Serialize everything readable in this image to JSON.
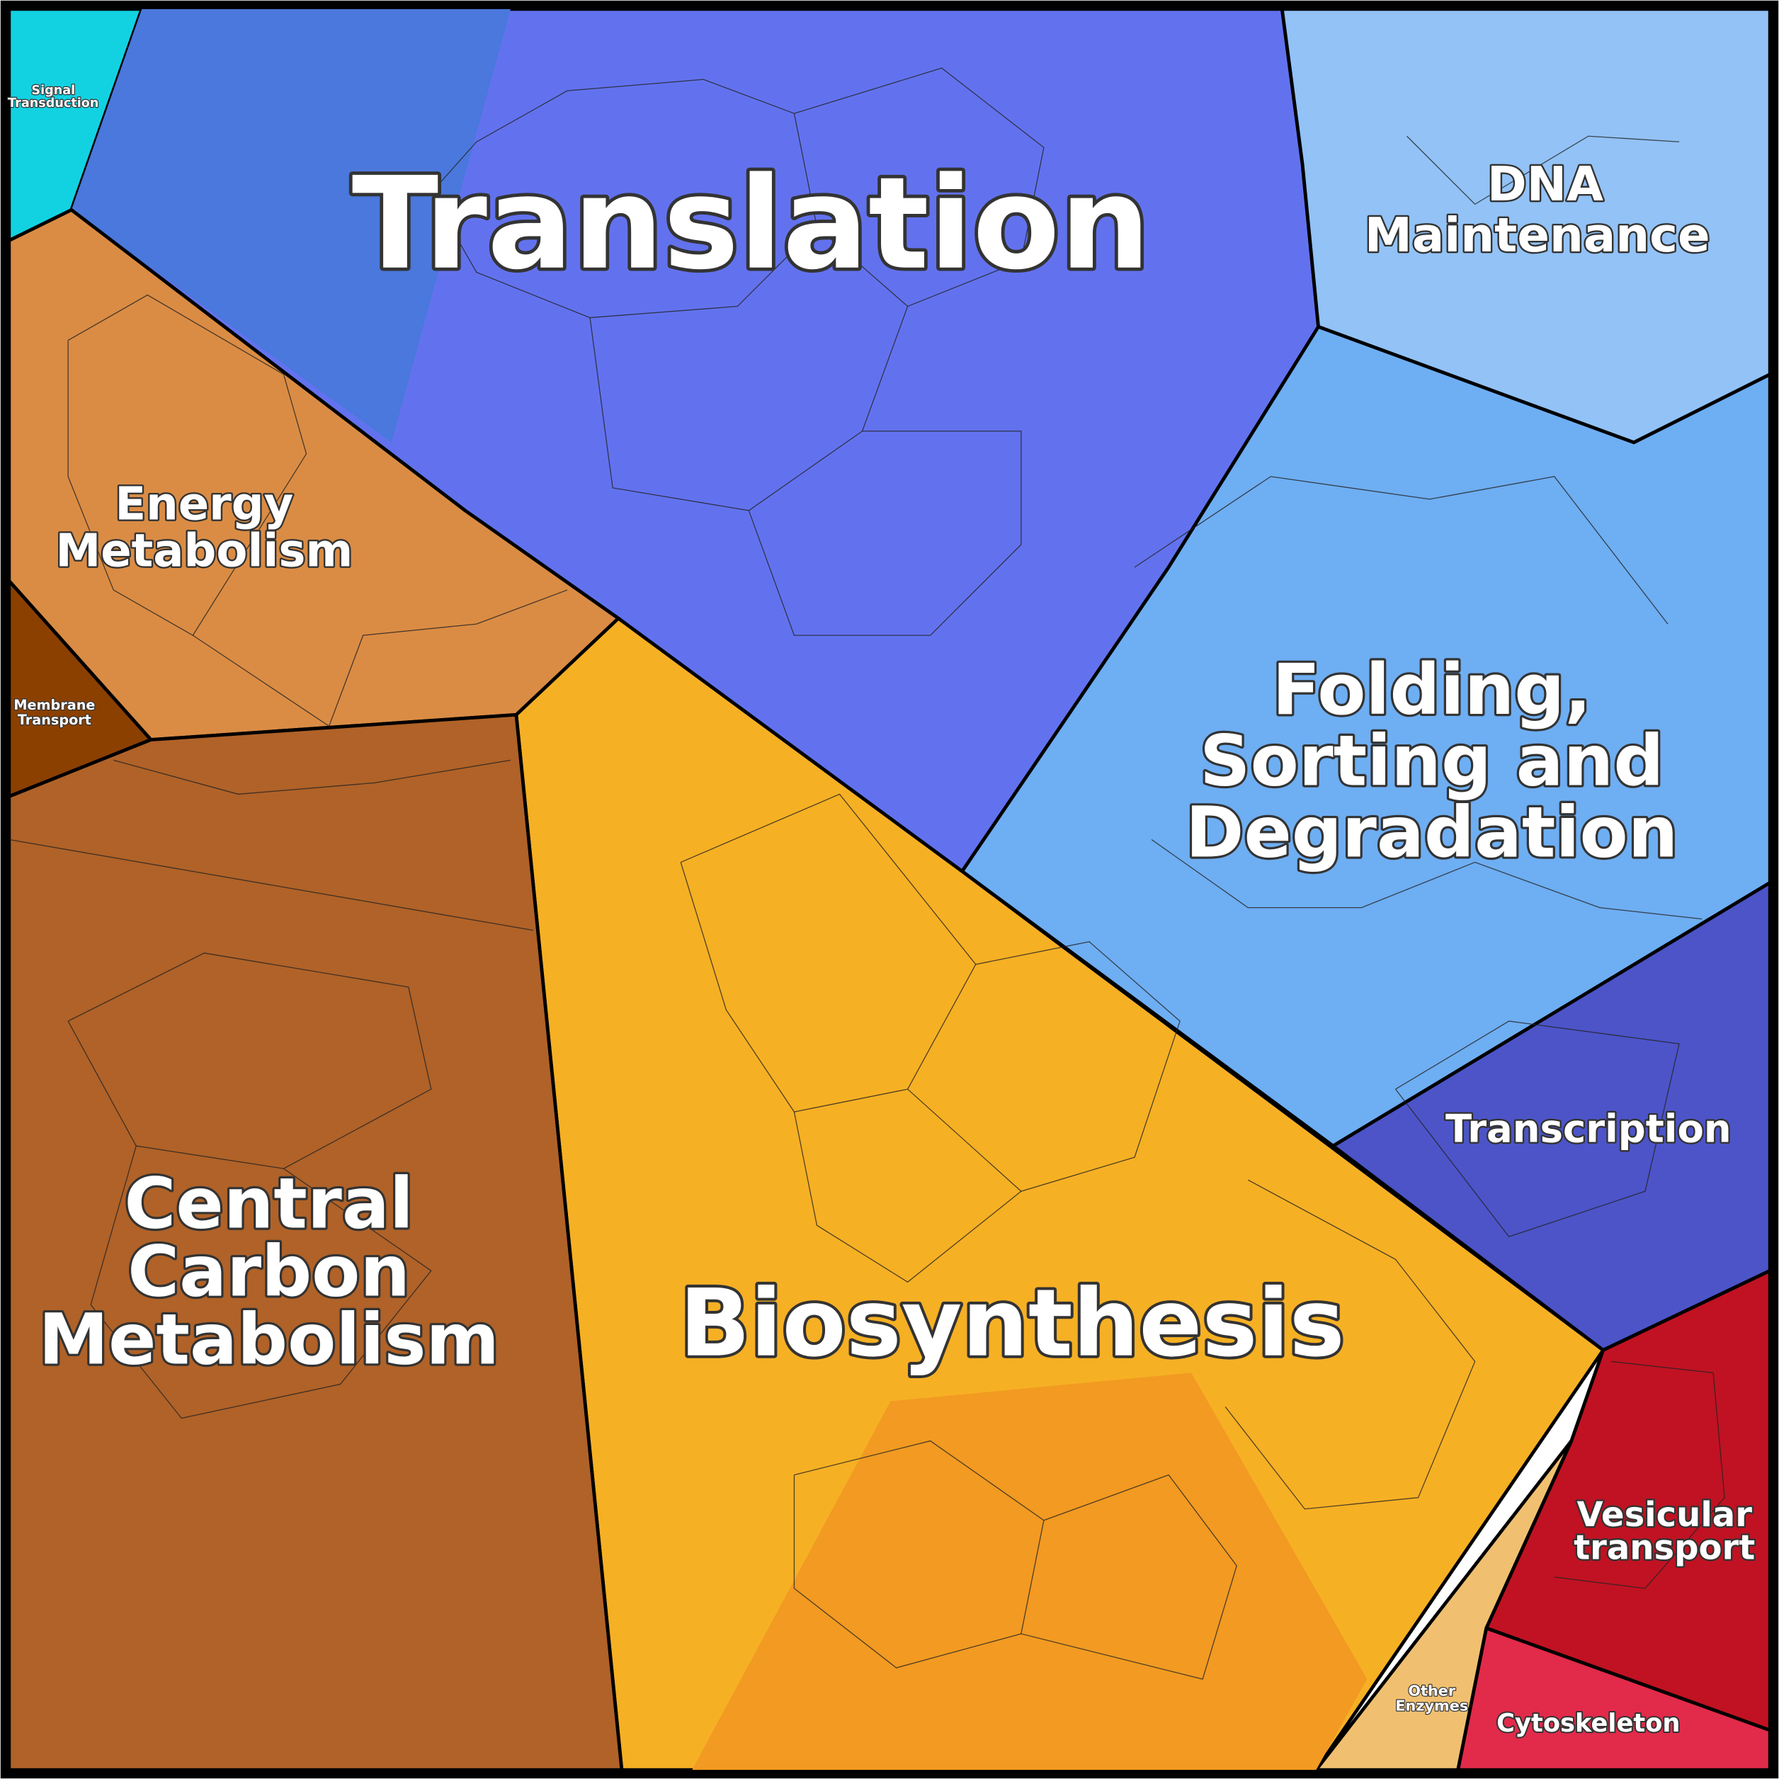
{
  "regions": [
    {
      "label": [
        "Signal",
        "Transduction"
      ]
    },
    {
      "label": [
        "Translation"
      ]
    },
    {
      "label": [
        "DNA",
        "Maintenance"
      ]
    },
    {
      "label": [
        "Energy",
        "Metabolism"
      ]
    },
    {
      "label": [
        "Membrane",
        "Transport"
      ]
    },
    {
      "label": [
        "Folding,",
        "Sorting and",
        "Degradation"
      ]
    },
    {
      "label": [
        "Transcription"
      ]
    },
    {
      "label": [
        "Central",
        "Carbon",
        "Metabolism"
      ]
    },
    {
      "label": [
        "Biosynthesis"
      ]
    },
    {
      "label": [
        "Vesicular",
        "transport"
      ]
    },
    {
      "label": [
        "Other",
        "Enzymes"
      ]
    },
    {
      "label": [
        "Cytoskeleton"
      ]
    }
  ]
}
